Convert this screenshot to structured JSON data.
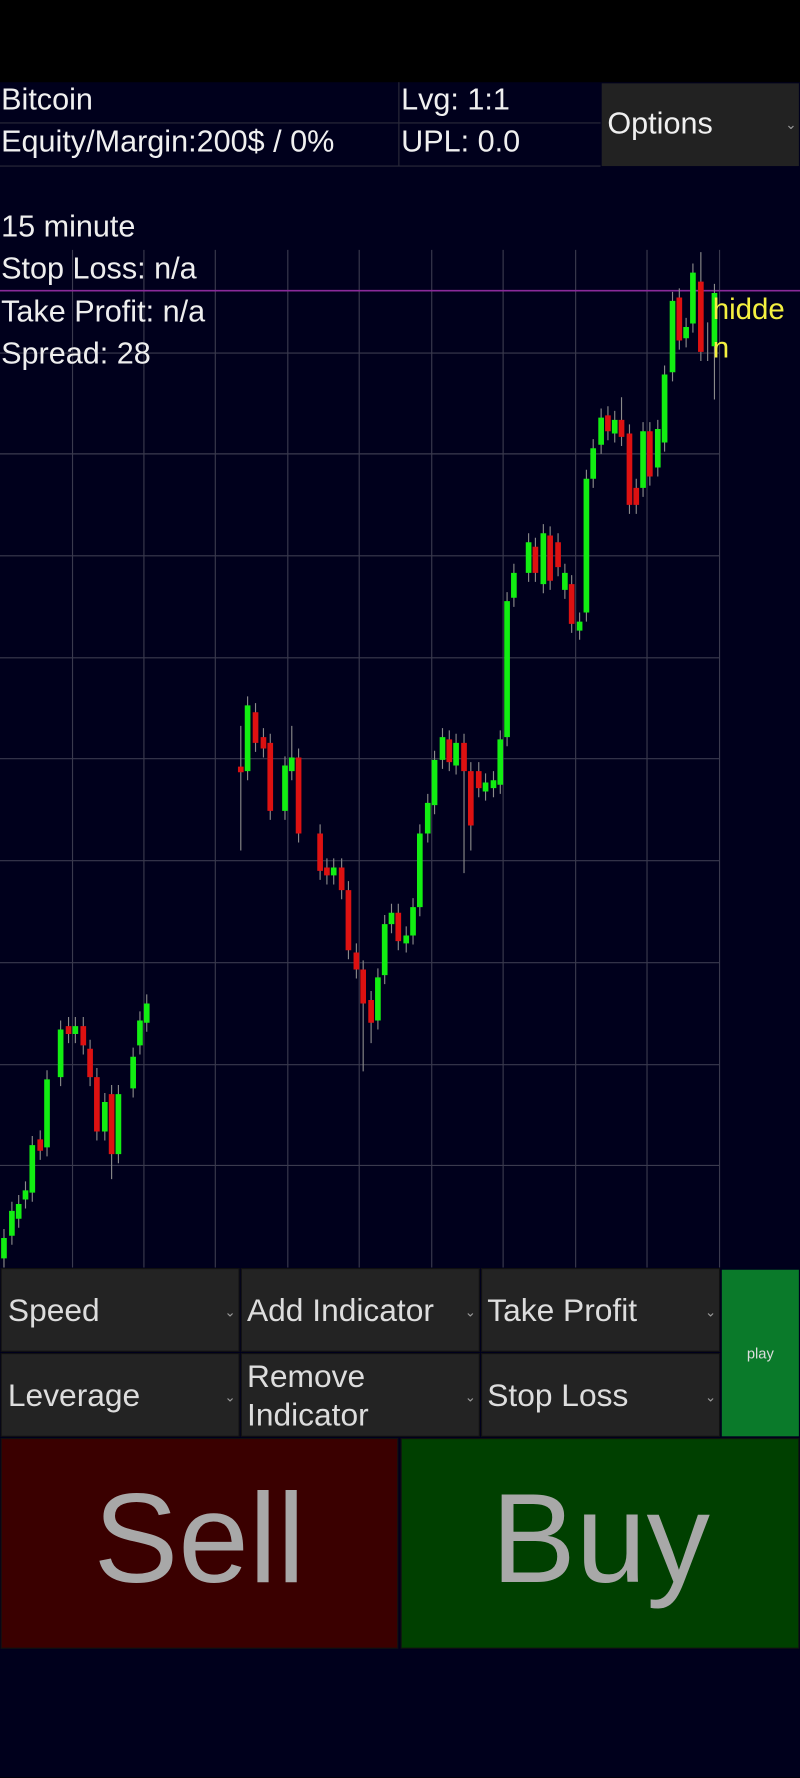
{
  "header": {
    "title": "Bitcoin",
    "equity": "Equity/Margin:200$ / 0%",
    "leverage": "Lvg: 1:1",
    "upl": "UPL: 0.0",
    "options": "Options"
  },
  "info": {
    "timeframe": "15 minute",
    "stop_loss": "Stop Loss: n/a",
    "take_profit": "Take Profit: n/a",
    "spread": "Spread: 28"
  },
  "marker_label": [
    "hidde",
    "n"
  ],
  "controls": {
    "speed": "Speed",
    "add_indicator": "Add Indicator",
    "take_profit": "Take Profit",
    "play": "play",
    "leverage": "Leverage",
    "remove_indicator": [
      "Remove",
      "Indicator"
    ],
    "stop_loss": "Stop Loss"
  },
  "trade": {
    "sell": "Sell",
    "buy": "Buy"
  }
}
